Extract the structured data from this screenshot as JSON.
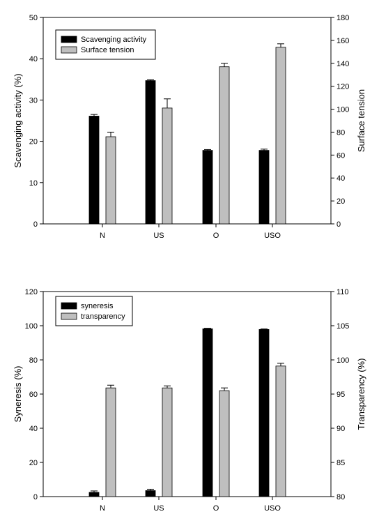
{
  "chart_data": [
    {
      "type": "bar",
      "categories": [
        "N",
        "US",
        "O",
        "USO"
      ],
      "series": [
        {
          "name": "Scavenging activity",
          "axis": "left",
          "color": "#000000",
          "values": [
            26.1,
            34.7,
            17.8,
            17.8
          ],
          "errors": [
            0.4,
            0.2,
            0.2,
            0.3
          ]
        },
        {
          "name": "Surface tension",
          "axis": "right",
          "color": "#bfbfbf",
          "values": [
            76,
            101,
            137,
            154
          ],
          "errors": [
            4,
            8,
            3,
            3
          ]
        }
      ],
      "ylabel": "Scavenging activity (%)",
      "y2label": "Surface tension",
      "ylim": [
        0,
        50
      ],
      "yticks": [
        "0",
        "10",
        "20",
        "30",
        "40",
        "50"
      ],
      "y2lim": [
        0,
        180
      ],
      "y2ticks": [
        "0",
        "20",
        "40",
        "60",
        "80",
        "100",
        "120",
        "140",
        "160",
        "180"
      ],
      "legend": "top-left",
      "grid": false
    },
    {
      "type": "bar",
      "categories": [
        "N",
        "US",
        "O",
        "USO"
      ],
      "series": [
        {
          "name": "syneresis",
          "axis": "left",
          "color": "#000000",
          "values": [
            2.5,
            3.5,
            98.2,
            97.8
          ],
          "errors": [
            0.8,
            0.8,
            0.3,
            0.3
          ]
        },
        {
          "name": "transparency",
          "axis": "right",
          "color": "#bfbfbf",
          "values": [
            95.9,
            95.9,
            95.5,
            99.1
          ],
          "errors": [
            0.4,
            0.3,
            0.4,
            0.4
          ]
        }
      ],
      "ylabel": "Syneresis (%)",
      "y2label": "Transparency (%)",
      "ylim": [
        0,
        120
      ],
      "yticks": [
        "0",
        "20",
        "40",
        "60",
        "80",
        "100",
        "120"
      ],
      "y2lim": [
        80,
        110
      ],
      "y2ticks": [
        "80",
        "85",
        "90",
        "95",
        "100",
        "105",
        "110"
      ],
      "legend": "top-left",
      "grid": false
    }
  ]
}
